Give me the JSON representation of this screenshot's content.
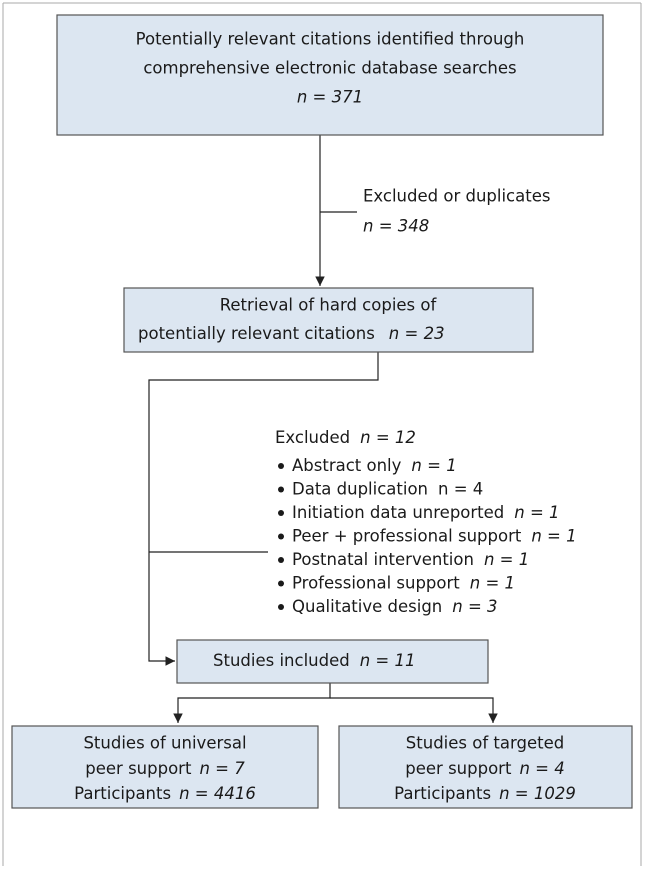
{
  "nodes": [
    {
      "lines": [
        "Potentially relevant citations identified through",
        "comprehensive electronic database searches"
      ],
      "count": "n = 371"
    },
    {
      "lines": [
        "Retrieval of hard copies of",
        "potentially relevant citations"
      ],
      "count": "n = 23"
    },
    {
      "label": "Studies included",
      "count": "n = 11"
    },
    {
      "lines": [
        "Studies of universal",
        "peer support"
      ],
      "count": "n = 7",
      "participants_label": "Participants",
      "participants": "n = 4416"
    },
    {
      "lines": [
        "Studies of targeted",
        "peer support"
      ],
      "count": "n = 4",
      "participants_label": "Participants",
      "participants": "n = 1029"
    }
  ],
  "exclusions": [
    {
      "label": "Excluded or duplicates",
      "count": "n = 348"
    },
    {
      "label": "Excluded",
      "count": "n = 12",
      "items": [
        {
          "label": "Abstract only",
          "count": "n = 1"
        },
        {
          "label": "Data duplication",
          "count": "n = 4"
        },
        {
          "label": "Initiation data unreported",
          "count": "n = 1"
        },
        {
          "label": "Peer + professional support",
          "count": "n = 1"
        },
        {
          "label": "Postnatal intervention",
          "count": "n = 1"
        },
        {
          "label": "Professional support",
          "count": "n = 1"
        },
        {
          "label": "Qualitative design",
          "count": "n = 3"
        }
      ]
    }
  ]
}
